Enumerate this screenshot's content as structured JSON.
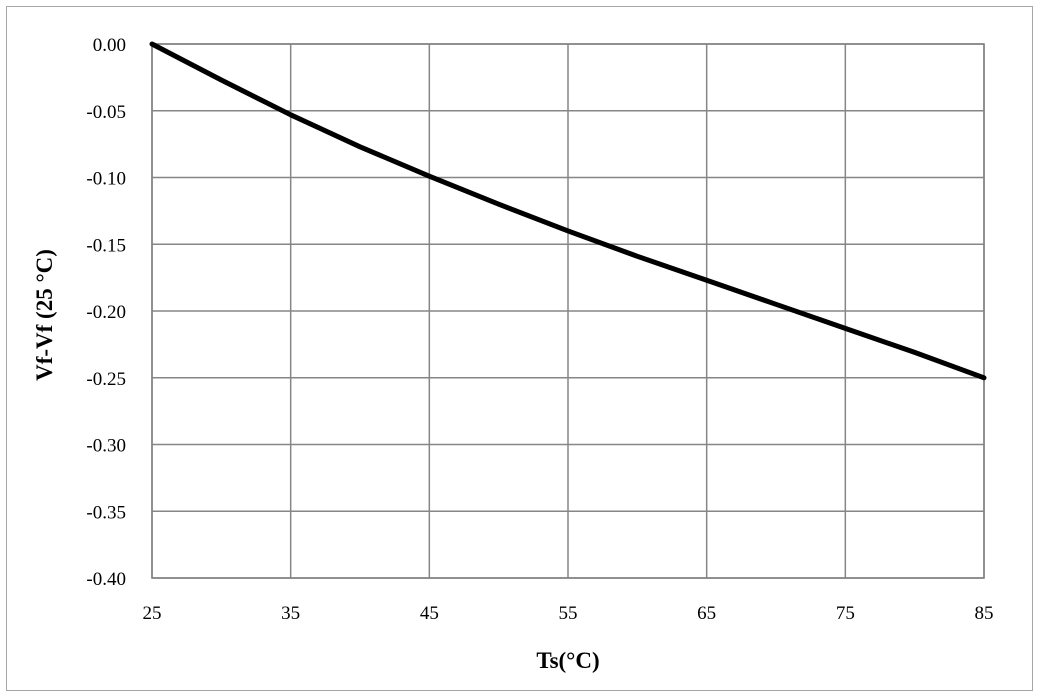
{
  "chart_data": {
    "type": "line",
    "title": "",
    "xlabel": "Ts(°C)",
    "ylabel": "Vf-Vf (25 °C)",
    "xlim": [
      25,
      85
    ],
    "ylim": [
      -0.4,
      0.0
    ],
    "xticks": [
      25,
      35,
      45,
      55,
      65,
      75,
      85
    ],
    "yticks": [
      0.0,
      -0.05,
      -0.1,
      -0.15,
      -0.2,
      -0.25,
      -0.3,
      -0.35,
      -0.4
    ],
    "xtick_labels": [
      "25",
      "35",
      "45",
      "55",
      "65",
      "75",
      "85"
    ],
    "ytick_labels": [
      "0.00",
      "-0.05",
      "-0.10",
      "-0.15",
      "-0.20",
      "-0.25",
      "-0.30",
      "-0.35",
      "-0.40"
    ],
    "grid": true,
    "legend": "none",
    "series": [
      {
        "color": "#000000",
        "x": [
          25,
          30,
          35,
          40,
          45,
          50,
          55,
          60,
          65,
          70,
          75,
          80,
          85
        ],
        "y": [
          0.0,
          -0.027,
          -0.053,
          -0.077,
          -0.099,
          -0.12,
          -0.14,
          -0.159,
          -0.177,
          -0.195,
          -0.213,
          -0.231,
          -0.25
        ]
      }
    ]
  }
}
